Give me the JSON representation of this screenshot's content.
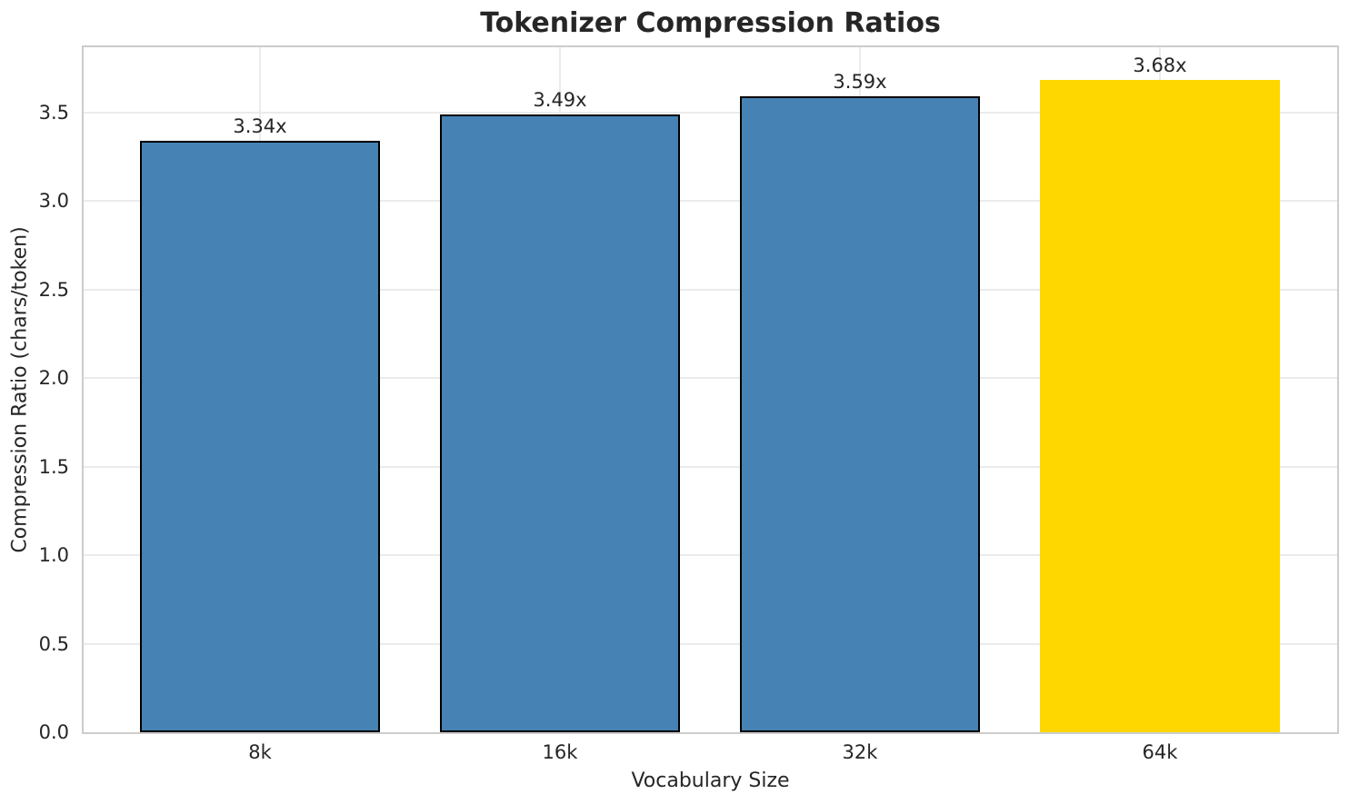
{
  "chart_data": {
    "type": "bar",
    "title": "Tokenizer Compression Ratios",
    "xlabel": "Vocabulary Size",
    "ylabel": "Compression Ratio (chars/token)",
    "categories": [
      "8k",
      "16k",
      "32k",
      "64k"
    ],
    "values": [
      3.34,
      3.49,
      3.59,
      3.68
    ],
    "bar_labels": [
      "3.34x",
      "3.49x",
      "3.59x",
      "3.68x"
    ],
    "bar_colors": [
      "#4682B4",
      "#4682B4",
      "#4682B4",
      "#FFD700"
    ],
    "bar_edge_colors": [
      "#000000",
      "#000000",
      "#000000",
      "none"
    ],
    "highlighted_category": "64k",
    "ylim": [
      0,
      3.867
    ],
    "yticks": [
      0.0,
      0.5,
      1.0,
      1.5,
      2.0,
      2.5,
      3.0,
      3.5
    ],
    "ytick_labels": [
      "0.0",
      "0.5",
      "1.0",
      "1.5",
      "2.0",
      "2.5",
      "3.0",
      "3.5"
    ],
    "grid": "both",
    "legend": "none",
    "colors": {
      "bar_default": "#4682B4",
      "bar_highlight": "#FFD700",
      "grid": "#ebebeb",
      "spine": "#cccccc",
      "text": "#262626"
    }
  }
}
